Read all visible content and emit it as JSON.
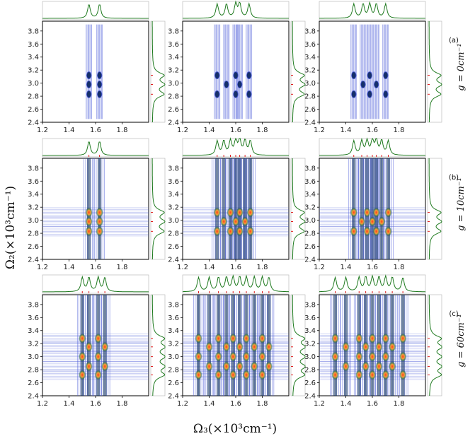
{
  "figure": {
    "ylabel": "Ω₂(×10³cm⁻¹)",
    "xlabel": "Ω₃(×10³cm⁻¹)",
    "rows": [
      {
        "tag": "(a)",
        "label": "g = 0cm⁻¹"
      },
      {
        "tag": "(b)",
        "label": "g = 10cm⁻¹"
      },
      {
        "tag": "(c)",
        "label": "g = 60cm⁻¹"
      }
    ]
  },
  "chart_data": {
    "type": "heatmap",
    "description_axes": {
      "x_ticks": [
        "1.2",
        "1.4",
        "1.6",
        "1.8"
      ],
      "y_ticks": [
        "2.4",
        "2.6",
        "2.8",
        "3.0",
        "3.2",
        "3.4",
        "3.6",
        "3.8"
      ],
      "xlim": [
        1.2,
        2.0
      ],
      "ylim": [
        2.4,
        3.95
      ]
    },
    "colors": {
      "contour": "#4a5bd8",
      "peak_hot": "#ff3b1a",
      "peak_mid": "#f2a03a",
      "marginal": "#1f7a1f",
      "tick_marks": "#e02020"
    },
    "panels": [
      {
        "row": 0,
        "col": 0,
        "x_peaks": [
          1.55,
          1.63
        ],
        "y_peaks": [
          2.83,
          2.98,
          3.12
        ],
        "heat": 0
      },
      {
        "row": 0,
        "col": 1,
        "x_peaks": [
          1.46,
          1.53,
          1.6,
          1.63,
          1.7
        ],
        "y_peaks": [
          2.83,
          2.98,
          3.12
        ],
        "heat": 0
      },
      {
        "row": 0,
        "col": 2,
        "x_peaks": [
          1.46,
          1.53,
          1.58,
          1.63,
          1.7
        ],
        "y_peaks": [
          2.83,
          2.98,
          3.12
        ],
        "heat": 0
      },
      {
        "row": 1,
        "col": 0,
        "x_peaks": [
          1.55,
          1.63
        ],
        "y_peaks": [
          2.83,
          2.98,
          3.12
        ],
        "heat": 1
      },
      {
        "row": 1,
        "col": 1,
        "x_peaks": [
          1.46,
          1.51,
          1.56,
          1.6,
          1.63,
          1.67,
          1.71
        ],
        "y_peaks": [
          2.83,
          2.98,
          3.12
        ],
        "heat": 1
      },
      {
        "row": 1,
        "col": 2,
        "x_peaks": [
          1.46,
          1.52,
          1.56,
          1.6,
          1.63,
          1.67,
          1.72
        ],
        "y_peaks": [
          2.83,
          2.98,
          3.12
        ],
        "heat": 1
      },
      {
        "row": 2,
        "col": 0,
        "x_peaks": [
          1.5,
          1.55,
          1.62,
          1.67
        ],
        "y_peaks": [
          2.72,
          2.85,
          3.0,
          3.15,
          3.28
        ],
        "heat": 1
      },
      {
        "row": 2,
        "col": 1,
        "x_peaks": [
          1.32,
          1.4,
          1.47,
          1.53,
          1.58,
          1.63,
          1.68,
          1.74,
          1.8,
          1.85
        ],
        "y_peaks": [
          2.72,
          2.85,
          3.0,
          3.15,
          3.28
        ],
        "heat": 1
      },
      {
        "row": 2,
        "col": 2,
        "x_peaks": [
          1.32,
          1.4,
          1.5,
          1.55,
          1.6,
          1.65,
          1.7,
          1.75,
          1.83
        ],
        "y_peaks": [
          2.72,
          2.85,
          3.0,
          3.15,
          3.28
        ],
        "heat": 1
      }
    ]
  }
}
